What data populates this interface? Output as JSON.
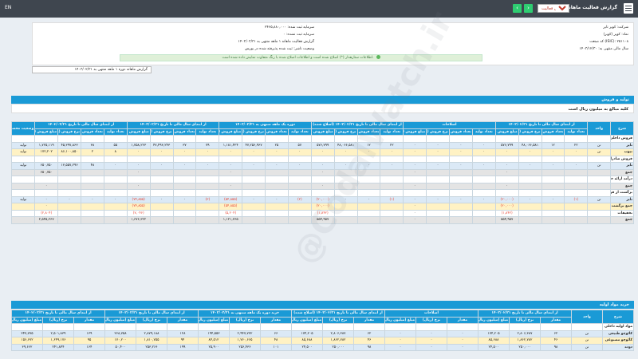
{
  "topbar": {
    "title": "گزارش فعالیت ماهانه",
    "select_value": "گزارش فعالیت",
    "left": "EN"
  },
  "info": {
    "company": "شرکت: کویر تایر",
    "symbol": "نماد: کویر (کویر)",
    "isic": "کد صنعت (ISIC): ۲۵۱۱۰۸",
    "fiscal_year": "سال مالی منتهی به: ۱۴۰۳/۱۲/۳۰",
    "capital": "سرمایه ثبت شده: ۲۴۶۵,۸۸۰,۰۰۰",
    "unregistered": "سرمایه ثبت نشده: ۰",
    "period": "گزارش فعالیت ماهانه ۱ ماهه منتهی به ۱۴۰۳/۰۳/۳۱",
    "status": "وضعیت ناشر: ثبت شده پذیرفته شده در بورس"
  },
  "notice": "اطلاعات ستارهدار (*) اصلاح شده است و اطلاعات اصلاح شده با رنگ متفاوت نمایش داده شده است.",
  "link": "گزارش ماهانه دوره ۱ ماهه منتهی به ۱۴۰۳/۰۲/۳۱",
  "section1": {
    "title": "تولید و فروش",
    "subtitle": "کلیه مبالغ به میلیون ریال است"
  },
  "section2": {
    "title": "خرید مواد اولیه"
  },
  "watermark": "@CodalWatch.ir",
  "t1_headers": [
    "شرح",
    "واحد",
    "از ابتدای سال مالی تا تاریخ ۱۴۰۳/۰۲/۳۱",
    "اصلاحات",
    "از ابتدای سال مالی تا تاریخ ۱۴۰۳/۰۲/۳۱ (اصلاح شده)",
    "دوره یک ماهه منتهی به ۱۴۰۳/۰۳/۳۱",
    "از ابتدای سال مالی تا تاریخ ۱۴۰۳/۰۳/۳۱",
    "از ابتدای سال مالی تا تاریخ ۱۴۰۲/۰۳/۳۱",
    "وضعیت محصول-واحد"
  ],
  "t1_sub": [
    "تعداد تولید",
    "تعداد فروش",
    "نرخ فروش (ریال)",
    "مبلغ فروش (میلیون ریال)"
  ],
  "t1_rows": [
    {
      "cls": "r-wht",
      "cells": [
        "فروش داخلی",
        "",
        "",
        "",
        "",
        "",
        "",
        "",
        "",
        "",
        "",
        "",
        "",
        "",
        "",
        "",
        "",
        "",
        "",
        "",
        "",
        "",
        "",
        "",
        ""
      ]
    },
    {
      "cls": "r-blue",
      "cells": [
        "تایر",
        "تن",
        "۲۲",
        "۱۲",
        "۴۸,۰۶۶,۵۸۱",
        "۵۷۶,۷۹۹",
        "۰",
        "۰",
        "۰",
        "۰",
        "۲۲",
        "۱۲",
        "۴۸,۰۶۶,۵۸۱",
        "۵۷۶,۷۹۹",
        "۵۷",
        "۲۵",
        "۴۷,۲۵۶,۹۶۷",
        "۱,۱۸۱,۴۲۴",
        "۷۹",
        "۳۷",
        "۴۷,۴۹۳,۲۴۳",
        "۱,۷۵۸,۲۲۳",
        "۵۵",
        "۳۸",
        "۴۵,۳۹۷,۸۶۳",
        "۱,۷۲۵,۱۱۹",
        "تولید"
      ]
    },
    {
      "cls": "r-yel",
      "cells": [
        "تیوب",
        "تن",
        "۰",
        "۰",
        "۰",
        "۰",
        "۰",
        "۰",
        "۰",
        "۰",
        "۰",
        "۰",
        "۰",
        "۰",
        "۰",
        "۰",
        "۰",
        "۰",
        "۰",
        "۰",
        "۰",
        "۰",
        "۸",
        "۲",
        "۸۶,۱۰۰,۸۵۰",
        "۱۷۲,۲۰۲",
        "تولید"
      ]
    },
    {
      "cls": "r-wht",
      "cells": [
        "فروش صادراتی",
        "",
        "",
        "",
        "",
        "",
        "",
        "",
        "",
        "",
        "",
        "",
        "",
        "",
        "",
        "",
        "",
        "",
        "",
        "",
        "",
        "",
        "",
        "",
        ""
      ]
    },
    {
      "cls": "r-blue",
      "cells": [
        "تایر",
        "تن",
        "۰",
        "۰",
        "۰",
        "۰",
        "۰",
        "۰",
        "۰",
        "۰",
        "۰",
        "۰",
        "۰",
        "۰",
        "۰",
        "۰",
        "۰",
        "۰",
        "۰",
        "۰",
        "۰",
        "۰",
        "۰",
        "۴۸",
        "۱۳,۵۵۷,۲۹۶",
        "۶۵۰,۷۵۰",
        "تولید"
      ]
    },
    {
      "cls": "r-grey",
      "cells": [
        "جمع",
        "",
        "",
        "",
        "",
        "۰",
        "",
        "",
        "",
        "۰",
        "",
        "",
        "",
        "۰",
        "",
        "",
        "",
        "۰",
        "",
        "",
        "",
        "۰",
        "",
        "",
        "",
        "۶۵۰,۷۵۰",
        ""
      ]
    },
    {
      "cls": "r-wht",
      "cells": [
        "درآمد ارائه خدمات",
        "",
        "",
        "",
        "",
        "",
        "",
        "",
        "",
        "",
        "",
        "",
        "",
        "",
        "",
        "",
        "",
        "",
        "",
        "",
        "",
        "",
        "",
        "",
        ""
      ]
    },
    {
      "cls": "r-grey",
      "cells": [
        "جمع",
        "",
        "",
        "",
        "",
        "۰",
        "",
        "",
        "",
        "۰",
        "",
        "",
        "",
        "۰",
        "",
        "",
        "",
        "۰",
        "",
        "",
        "",
        "۰",
        "",
        "",
        "",
        "۰",
        ""
      ]
    },
    {
      "cls": "r-wht",
      "cells": [
        "برگشت از فروش",
        "",
        "",
        "",
        "",
        "",
        "",
        "",
        "",
        "",
        "",
        "",
        "",
        "",
        "",
        "",
        "",
        "",
        "",
        "",
        "",
        "",
        "",
        "",
        ""
      ]
    },
    {
      "cls": "r-blue",
      "cells": [
        "تایر",
        "تن",
        "(۱)",
        "۰",
        "۰",
        "(۲۰,۰۰۰)",
        "۰",
        "۰",
        "۰",
        "۰",
        "(۱)",
        "۰",
        "۰",
        "(۲۰,۰۰۰)",
        "(۲)",
        "۰",
        "۰",
        "(۵۴,۸۵۵)",
        "(۳)",
        "۰",
        "۰",
        "(۷۴,۸۵۵)",
        "۰",
        "۰",
        "۰",
        "۰",
        "تولید"
      ]
    },
    {
      "cls": "r-yel",
      "cells": [
        "جمع برگشت از فروش",
        "",
        "",
        "",
        "",
        "(۲۰,۰۰۰)",
        "",
        "",
        "",
        "۰",
        "",
        "",
        "",
        "(۲۰,۰۰۰)",
        "",
        "",
        "",
        "(۵۴,۸۵۵)",
        "",
        "",
        "",
        "(۷۴,۸۵۵)",
        "",
        "",
        "",
        "۰",
        ""
      ]
    },
    {
      "cls": "r-wht",
      "cells": [
        "تخفیفات",
        "",
        "",
        "",
        "",
        "(۱,۸۴۲)",
        "",
        "",
        "",
        "۰",
        "",
        "",
        "",
        "(۱,۸۴۲)",
        "",
        "",
        "",
        "(۵,۲۰۴)",
        "",
        "",
        "",
        "(۷,۰۴۶)",
        "",
        "",
        "",
        "(۲,۸۰۴)",
        ""
      ]
    },
    {
      "cls": "r-grey",
      "cells": [
        "جمع",
        "",
        "",
        "",
        "",
        "۵۵۴,۹۵۷",
        "",
        "",
        "",
        "۰",
        "",
        "",
        "",
        "۵۵۴,۹۵۷",
        "",
        "",
        "",
        "۱,۱۲۱,۳۶۵",
        "",
        "",
        "",
        "۱,۶۷۶,۳۲۲",
        "",
        "",
        "",
        "۲,۵۴۵,۲۶۷",
        ""
      ]
    }
  ],
  "t2_headers": [
    "شرح",
    "واحد",
    "از ابتدای سال مالی تا تاریخ ۱۴۰۳/۰۲/۳۱",
    "اصلاحات",
    "از ابتدای سال مالی تا تاریخ ۱۴۰۳/۰۲/۳۱ (اصلاح شده)",
    "خرید دوره یک ماهه منتهی به ۱۴۰۳/۰۳/۳۱",
    "از ابتدای سال مالی تا تاریخ ۱۴۰۳/۰۳/۳۱",
    "از ابتدای سال مالی تا تاریخ ۱۴۰۲/۰۳/۳۱"
  ],
  "t2_sub": [
    "مقدار",
    "نرخ (ریال)",
    "مبلغ (میلیون ریال)"
  ],
  "t2_rows": [
    {
      "cls": "r-wht",
      "cells": [
        "مواد اولیه داخلی",
        "",
        "",
        "",
        "",
        "",
        "",
        "",
        "",
        "",
        "",
        "",
        "",
        "",
        "",
        "",
        "",
        "",
        "",
        "",
        ""
      ]
    },
    {
      "cls": "r-blue",
      "cells": [
        "کائوچو طبیعی",
        "تن",
        "۶۲",
        "۲,۸۰۶,۳۸۷",
        "۱۷۴,۲۰۵",
        "۰",
        "۰",
        "۰",
        "۶۲",
        "۲,۸۰۶,۳۸۷",
        "۱۷۴,۲۰۵",
        "۶۶",
        "۲,۹۴۷,۷۷۲",
        "۱۹۴,۵۵۳",
        "۱۲۸",
        "۲,۸۷۹,۱۸۸",
        "۳۶۸,۷۵۸",
        "۱۳۹",
        "۲,۵۰۱,۸۳۹",
        "۳۴۷,۷۷۵"
      ]
    },
    {
      "cls": "r-yel",
      "cells": [
        "کائوچو مصنوعی",
        "تن",
        "۴۶",
        "۱,۸۶۲,۷۸۲",
        "۸۵,۶۸۸",
        "۰",
        "۰",
        "۰",
        "۴۶",
        "۱,۸۶۲,۷۸۲",
        "۸۵,۶۸۸",
        "۴۸",
        "۱,۷۶۰,۶۶۵",
        "۸۴,۵۱۲",
        "۹۴",
        "۱,۸۱۰,۷۵۵",
        "۱۷۰,۲۰۰",
        "۹۵",
        "۱,۶۴۹,۱۷۶",
        "۱۵۶,۶۷۲"
      ]
    },
    {
      "cls": "r-blue",
      "cells": [
        "دوده",
        "تن",
        "۹۸",
        "۲۵۰,۰۰۰",
        "۲۴,۵۰۰",
        "۰",
        "۰",
        "۰",
        "۹۸",
        "۲۵۰,۰۰۰",
        "۲۴,۵۰۰",
        "۱۰۱",
        "۲۵۶,۴۳۶",
        "۲۵,۹۰۰",
        "۱۹۹",
        "۲۵۳,۲۶۶",
        "۵۰,۴۰۰",
        "۱۶۴",
        "۲۴۱,۸۴۴",
        "۳۹,۶۶۲"
      ]
    }
  ]
}
